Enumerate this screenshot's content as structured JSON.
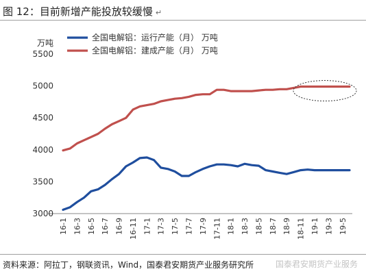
{
  "page": {
    "title": "图 12：目前新增产能投放较缓慢",
    "title_mark": "↵",
    "source": "资料来源：阿拉丁，钢联资讯，Wind，国泰君安期货产业服务研究所",
    "watermark": "国泰君安期货产业服务"
  },
  "chart_data": {
    "type": "line",
    "ylabel": "万吨",
    "ylim": [
      3000,
      5500
    ],
    "yticks": [
      3000,
      3500,
      4000,
      4500,
      5000,
      5500
    ],
    "grid": false,
    "legend_position": "top-left",
    "x": [
      "16-1",
      "16-2",
      "16-3",
      "16-4",
      "16-5",
      "16-6",
      "16-7",
      "16-8",
      "16-9",
      "16-10",
      "16-11",
      "16-12",
      "17-1",
      "17-2",
      "17-3",
      "17-4",
      "17-5",
      "17-6",
      "17-7",
      "17-8",
      "17-9",
      "17-10",
      "17-11",
      "17-12",
      "18-1",
      "18-2",
      "18-3",
      "18-4",
      "18-5",
      "18-6",
      "18-7",
      "18-8",
      "18-9",
      "18-10",
      "18-11",
      "18-12",
      "19-1",
      "19-2",
      "19-3",
      "19-4",
      "19-5",
      "19-6"
    ],
    "xticks": [
      "16-1",
      "16-3",
      "16-5",
      "16-7",
      "16-9",
      "16-11",
      "17-1",
      "17-3",
      "17-5",
      "17-7",
      "17-9",
      "17-11",
      "18-1",
      "18-3",
      "18-5",
      "18-7",
      "18-9",
      "18-11",
      "19-1",
      "19-3",
      "19-5"
    ],
    "series": [
      {
        "name": "全国电解铝：运行产能（月）  万吨",
        "color": "#1f4e9e",
        "values": [
          3060,
          3100,
          3180,
          3250,
          3350,
          3380,
          3450,
          3540,
          3620,
          3740,
          3800,
          3870,
          3880,
          3840,
          3720,
          3700,
          3660,
          3590,
          3590,
          3650,
          3700,
          3740,
          3770,
          3770,
          3760,
          3740,
          3780,
          3760,
          3750,
          3680,
          3660,
          3640,
          3620,
          3650,
          3680,
          3690,
          3680,
          3680,
          3680,
          3680,
          3680,
          3680
        ]
      },
      {
        "name": "全国电解铝：建成产能（月）  万吨",
        "color": "#c0504d",
        "values": [
          3990,
          4020,
          4100,
          4150,
          4200,
          4250,
          4330,
          4400,
          4450,
          4500,
          4630,
          4680,
          4700,
          4720,
          4760,
          4780,
          4800,
          4810,
          4830,
          4860,
          4870,
          4870,
          4940,
          4940,
          4920,
          4920,
          4920,
          4920,
          4930,
          4940,
          4940,
          4950,
          4950,
          4970,
          4990,
          4990,
          4990,
          4990,
          4990,
          4990,
          4990,
          4990
        ]
      }
    ],
    "annotation": {
      "type": "dashed-ellipse",
      "color": "#333333"
    }
  }
}
